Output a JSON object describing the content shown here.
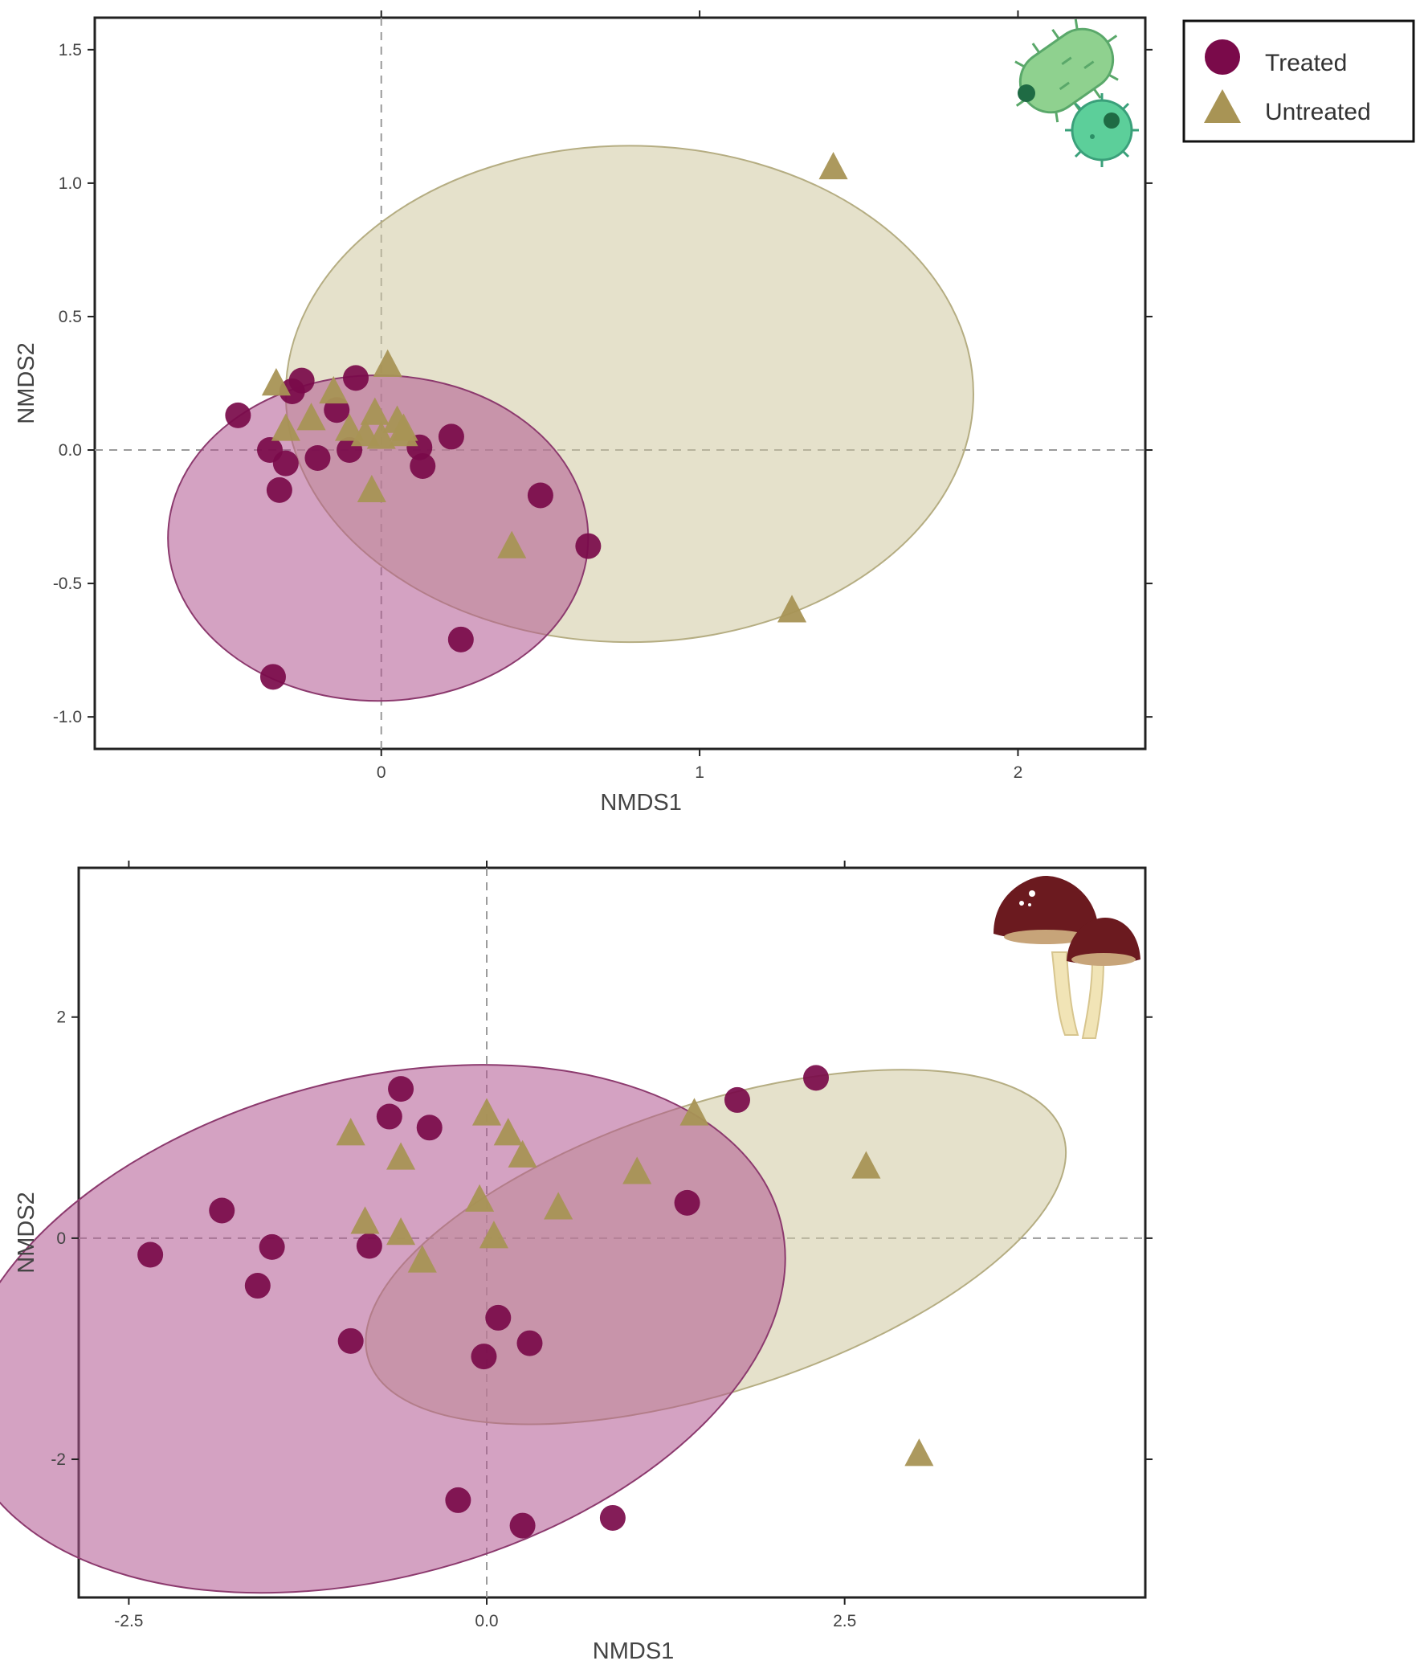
{
  "chart_data": [
    {
      "type": "scatter",
      "title": "",
      "icon": "bacteria-icon",
      "xlabel": "NMDS1",
      "ylabel": "NMDS2",
      "xlim": [
        -0.9,
        2.4
      ],
      "ylim": [
        -1.12,
        1.62
      ],
      "xticks": [
        0,
        1,
        2
      ],
      "xtick_labels": [
        "0",
        "1",
        "2"
      ],
      "yticks": [
        -1.0,
        -0.5,
        0.0,
        0.5,
        1.0,
        1.5
      ],
      "ytick_labels": [
        "-1.0",
        "-0.5",
        "0.0",
        "0.5",
        "1.0",
        "1.5"
      ],
      "series": [
        {
          "name": "Treated",
          "marker": "circle",
          "color": "#7a0a4a",
          "ellipse": {
            "cx": -0.01,
            "cy": -0.33,
            "rx": 0.66,
            "ry": 0.61,
            "angle": 0,
            "fill": "#b0558f",
            "stroke": "#8c3a6e"
          },
          "points": [
            [
              -0.45,
              0.13
            ],
            [
              -0.35,
              0.0
            ],
            [
              -0.3,
              -0.05
            ],
            [
              -0.32,
              -0.15
            ],
            [
              -0.28,
              0.22
            ],
            [
              -0.25,
              0.26
            ],
            [
              -0.2,
              -0.03
            ],
            [
              -0.14,
              0.15
            ],
            [
              -0.1,
              0.0
            ],
            [
              -0.08,
              0.27
            ],
            [
              0.12,
              0.01
            ],
            [
              0.13,
              -0.06
            ],
            [
              0.22,
              0.05
            ],
            [
              0.5,
              -0.17
            ],
            [
              0.65,
              -0.36
            ],
            [
              0.25,
              -0.71
            ],
            [
              -0.34,
              -0.85
            ]
          ]
        },
        {
          "name": "Untreated",
          "marker": "triangle",
          "color": "#a89455",
          "ellipse": {
            "cx": 0.78,
            "cy": 0.21,
            "rx": 1.08,
            "ry": 0.93,
            "angle": 0,
            "fill": "#cfc8a0",
            "stroke": "#b5ad82"
          },
          "points": [
            [
              -0.33,
              0.25
            ],
            [
              -0.3,
              0.08
            ],
            [
              -0.22,
              0.12
            ],
            [
              -0.15,
              0.22
            ],
            [
              -0.1,
              0.08
            ],
            [
              -0.05,
              0.06
            ],
            [
              -0.02,
              0.14
            ],
            [
              0.0,
              0.05
            ],
            [
              0.05,
              0.11
            ],
            [
              0.07,
              0.06
            ],
            [
              0.02,
              0.32
            ],
            [
              0.07,
              0.08
            ],
            [
              -0.03,
              -0.15
            ],
            [
              0.41,
              -0.36
            ],
            [
              1.42,
              1.06
            ],
            [
              1.29,
              -0.6
            ]
          ]
        }
      ],
      "legend": {
        "position": "top-right outside",
        "entries": [
          "Treated",
          "Untreated"
        ]
      }
    },
    {
      "type": "scatter",
      "title": "",
      "icon": "mushroom-icon",
      "xlabel": "NMDS1",
      "ylabel": "NMDS2",
      "xlim": [
        -2.85,
        4.6
      ],
      "ylim": [
        -3.25,
        3.35
      ],
      "xticks": [
        -2.5,
        0.0,
        2.5
      ],
      "xtick_labels": [
        "-2.5",
        "0.0",
        "2.5"
      ],
      "yticks": [
        -2,
        0,
        2
      ],
      "ytick_labels": [
        "-2",
        "0",
        "2"
      ],
      "series": [
        {
          "name": "Treated",
          "marker": "circle",
          "color": "#7a0a4a",
          "ellipse": {
            "cx": -0.8,
            "cy": -0.82,
            "rx": 2.95,
            "ry": 2.25,
            "angle": 15,
            "fill": "#b0558f",
            "stroke": "#8c3a6e"
          },
          "points": [
            [
              -2.35,
              -0.15
            ],
            [
              -1.85,
              0.25
            ],
            [
              -1.6,
              -0.43
            ],
            [
              -1.5,
              -0.08
            ],
            [
              -0.95,
              -0.93
            ],
            [
              -0.82,
              -0.07
            ],
            [
              -0.6,
              1.35
            ],
            [
              -0.68,
              1.1
            ],
            [
              -0.4,
              1.0
            ],
            [
              0.08,
              -0.72
            ],
            [
              -0.02,
              -1.07
            ],
            [
              0.3,
              -0.95
            ],
            [
              1.4,
              0.32
            ],
            [
              1.75,
              1.25
            ],
            [
              2.3,
              1.45
            ],
            [
              -0.2,
              -2.37
            ],
            [
              0.25,
              -2.6
            ],
            [
              0.88,
              -2.53
            ]
          ]
        },
        {
          "name": "Untreated",
          "marker": "triangle",
          "color": "#a89455",
          "ellipse": {
            "cx": 1.6,
            "cy": -0.08,
            "rx": 2.55,
            "ry": 1.3,
            "angle": 18,
            "fill": "#cfc8a0",
            "stroke": "#b5ad82"
          },
          "points": [
            [
              -0.95,
              0.95
            ],
            [
              -0.85,
              0.15
            ],
            [
              -0.6,
              0.73
            ],
            [
              -0.6,
              0.05
            ],
            [
              -0.45,
              -0.2
            ],
            [
              0.0,
              1.13
            ],
            [
              0.15,
              0.95
            ],
            [
              0.25,
              0.75
            ],
            [
              -0.05,
              0.35
            ],
            [
              0.05,
              0.02
            ],
            [
              0.5,
              0.28
            ],
            [
              1.05,
              0.6
            ],
            [
              1.45,
              1.13
            ],
            [
              2.65,
              0.65
            ],
            [
              3.02,
              -1.95
            ]
          ]
        }
      ]
    }
  ]
}
